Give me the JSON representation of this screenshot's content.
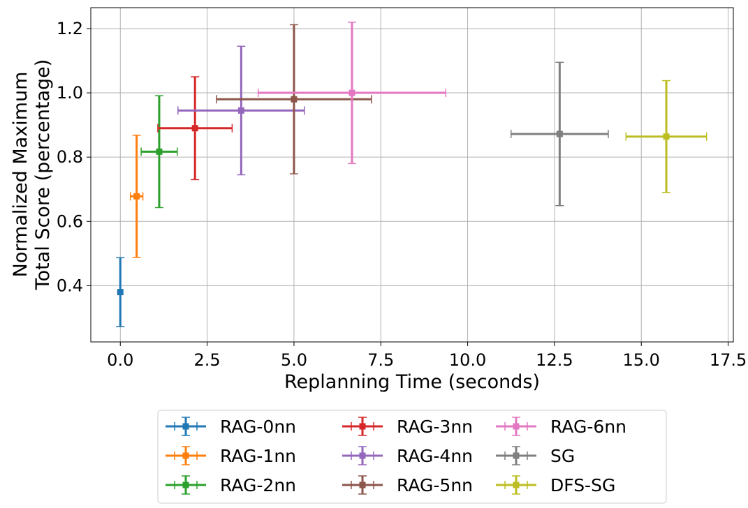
{
  "chart_data": {
    "type": "scatter",
    "title": "",
    "xlabel": "Replanning Time (seconds)",
    "ylabel_lines": [
      "Normalized Maximum",
      "Total Score (percentage)"
    ],
    "xlim": [
      -0.85,
      17.65
    ],
    "ylim": [
      0.225,
      1.265
    ],
    "xticks": [
      0.0,
      2.5,
      5.0,
      7.5,
      10.0,
      12.5,
      15.0,
      17.5
    ],
    "xtick_labels": [
      "0.0",
      "2.5",
      "5.0",
      "7.5",
      "10.0",
      "12.5",
      "15.0",
      "17.5"
    ],
    "yticks": [
      0.4,
      0.6,
      0.8,
      1.0,
      1.2
    ],
    "ytick_labels": [
      "0.4",
      "0.6",
      "0.8",
      "1.0",
      "1.2"
    ],
    "grid": true,
    "legend_position": "bottom-center",
    "legend_columns": 3,
    "series": [
      {
        "name": "RAG-0nn",
        "color": "#1f77b4",
        "x": 0.0,
        "y": 0.38,
        "xerr": 0.0,
        "yerr": 0.107
      },
      {
        "name": "RAG-1nn",
        "color": "#ff7f0e",
        "x": 0.47,
        "y": 0.678,
        "xerr": 0.18,
        "yerr": 0.19
      },
      {
        "name": "RAG-2nn",
        "color": "#2ca02c",
        "x": 1.12,
        "y": 0.817,
        "xerr": 0.52,
        "yerr": 0.174
      },
      {
        "name": "RAG-3nn",
        "color": "#d62728",
        "x": 2.15,
        "y": 0.89,
        "xerr": 1.07,
        "yerr": 0.16
      },
      {
        "name": "RAG-4nn",
        "color": "#9467bd",
        "x": 3.48,
        "y": 0.945,
        "xerr": 1.82,
        "yerr": 0.2
      },
      {
        "name": "RAG-5nn",
        "color": "#8c564b",
        "x": 5.0,
        "y": 0.98,
        "xerr": 2.23,
        "yerr": 0.232
      },
      {
        "name": "RAG-6nn",
        "color": "#e377c2",
        "x": 6.67,
        "y": 1.0,
        "xerr": 2.7,
        "yerr": 0.22
      },
      {
        "name": "SG",
        "color": "#7f7f7f",
        "x": 12.65,
        "y": 0.872,
        "xerr": 1.4,
        "yerr": 0.223
      },
      {
        "name": "DFS-SG",
        "color": "#bcbd22",
        "x": 15.72,
        "y": 0.864,
        "xerr": 1.16,
        "yerr": 0.174
      }
    ]
  }
}
